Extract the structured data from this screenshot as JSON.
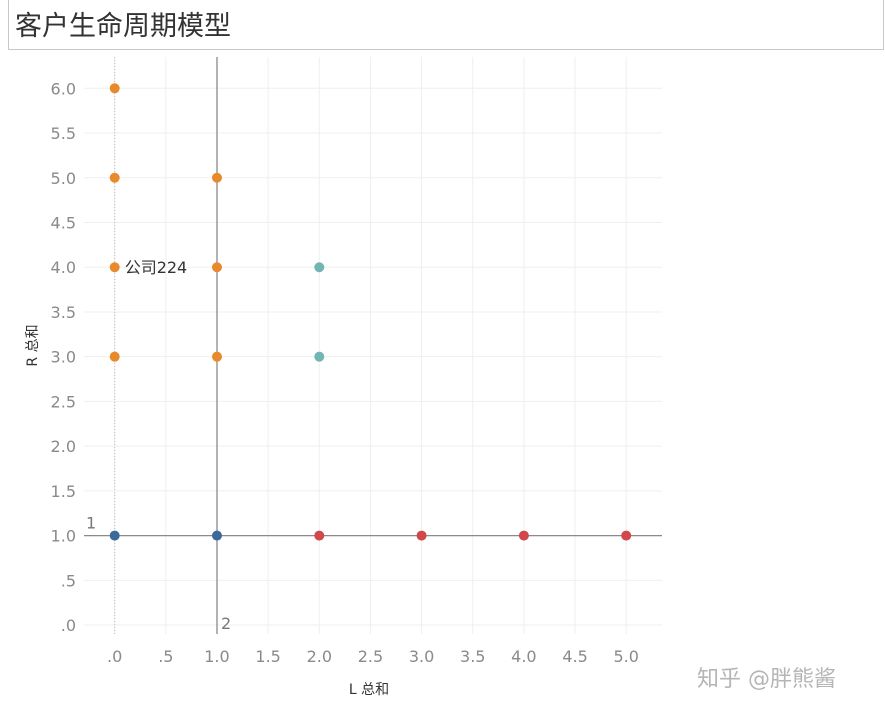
{
  "title": "客户生命周期模型",
  "watermark": "知乎 @胖熊酱",
  "chart_data": {
    "type": "scatter",
    "xlabel": "L 总和",
    "ylabel": "R 总和",
    "xlim": [
      -0.3,
      5.35
    ],
    "ylim": [
      -0.1,
      6.35
    ],
    "x_ticks": [
      0,
      0.5,
      1,
      1.5,
      2,
      2.5,
      3,
      3.5,
      4,
      4.5,
      5
    ],
    "x_tick_labels": [
      ".0",
      ".5",
      "1.0",
      "1.5",
      "2.0",
      "2.5",
      "3.0",
      "3.5",
      "4.0",
      "4.5",
      "5.0"
    ],
    "y_ticks": [
      0,
      0.5,
      1,
      1.5,
      2,
      2.5,
      3,
      3.5,
      4,
      4.5,
      5,
      5.5,
      6
    ],
    "y_tick_labels": [
      ".0",
      ".5",
      "1.0",
      "1.5",
      "2.0",
      "2.5",
      "3.0",
      "3.5",
      "4.0",
      "4.5",
      "5.0",
      "5.5",
      "6.0"
    ],
    "grid": true,
    "reference_lines": [
      {
        "axis": "x",
        "value": 1,
        "label": "2"
      },
      {
        "axis": "y",
        "value": 1,
        "label": "1"
      }
    ],
    "colors": {
      "orange": "#e8892b",
      "teal": "#72b5b2",
      "blue": "#3c6a98",
      "red": "#d1484b"
    },
    "series": [
      {
        "color": "orange",
        "points": [
          [
            0,
            6
          ],
          [
            0,
            5
          ],
          [
            0,
            4
          ],
          [
            0,
            3
          ],
          [
            1,
            5
          ],
          [
            1,
            4
          ],
          [
            1,
            3
          ]
        ]
      },
      {
        "color": "teal",
        "points": [
          [
            2,
            4
          ],
          [
            2,
            3
          ]
        ]
      },
      {
        "color": "blue",
        "points": [
          [
            0,
            1
          ],
          [
            1,
            1
          ]
        ]
      },
      {
        "color": "red",
        "points": [
          [
            2,
            1
          ],
          [
            3,
            1
          ],
          [
            4,
            1
          ],
          [
            5,
            1
          ]
        ]
      }
    ],
    "annotations": [
      {
        "x": 0,
        "y": 4,
        "text": "公司224"
      }
    ]
  }
}
